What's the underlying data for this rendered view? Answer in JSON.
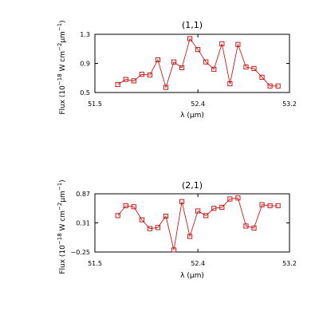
{
  "chart_data": [
    {
      "type": "line",
      "title": "(1,1)",
      "xlabel": "λ (μm)",
      "ylabel_main": "Flux (10",
      "ylabel_exp1": "−18",
      "ylabel_mid": " W cm",
      "ylabel_exp2": "−2",
      "ylabel_mid2": "μm",
      "ylabel_exp3": "−1",
      "ylabel_end": ")",
      "xlim": [
        51.5,
        53.2
      ],
      "ylim": [
        0.5,
        1.3
      ],
      "xticks": [
        "51.5",
        "52.4",
        "53.2"
      ],
      "xtick_values": [
        51.5,
        52.4,
        53.2
      ],
      "yticks": [
        "0.5",
        "0.9",
        "1.3"
      ],
      "ytick_values": [
        0.5,
        0.9,
        1.3
      ],
      "marker": "square",
      "color": "#cc0000",
      "x": [
        51.7,
        51.77,
        51.84,
        51.91,
        51.98,
        52.05,
        52.12,
        52.19,
        52.26,
        52.33,
        52.4,
        52.47,
        52.54,
        52.61,
        52.68,
        52.75,
        52.82,
        52.89,
        52.96,
        53.03,
        53.1
      ],
      "y": [
        0.61,
        0.68,
        0.66,
        0.75,
        0.74,
        0.95,
        0.57,
        0.92,
        0.84,
        1.24,
        1.09,
        0.92,
        0.82,
        1.17,
        0.62,
        1.16,
        0.85,
        0.83,
        0.71,
        0.59,
        0.59
      ]
    },
    {
      "type": "line",
      "title": "(2,1)",
      "xlabel": "λ (μm)",
      "ylabel_main": "Flux (10",
      "ylabel_exp1": "−18",
      "ylabel_mid": " W cm",
      "ylabel_exp2": "−2",
      "ylabel_mid2": "μm",
      "ylabel_exp3": "−1",
      "ylabel_end": ")",
      "xlim": [
        51.5,
        53.2
      ],
      "ylim": [
        -0.25,
        0.87
      ],
      "xticks": [
        "51.5",
        "52.4",
        "53.2"
      ],
      "xtick_values": [
        51.5,
        52.4,
        53.2
      ],
      "yticks": [
        "−0.25",
        "0.31",
        "0.87"
      ],
      "ytick_values": [
        -0.25,
        0.31,
        0.87
      ],
      "marker": "square",
      "color": "#cc0000",
      "x": [
        51.7,
        51.77,
        51.84,
        51.91,
        51.98,
        52.05,
        52.12,
        52.19,
        52.26,
        52.33,
        52.4,
        52.47,
        52.54,
        52.61,
        52.68,
        52.75,
        52.82,
        52.89,
        52.96,
        53.03,
        53.1
      ],
      "y": [
        0.45,
        0.64,
        0.62,
        0.37,
        0.2,
        0.22,
        0.44,
        -0.21,
        0.72,
        0.05,
        0.54,
        0.45,
        0.59,
        0.61,
        0.77,
        0.79,
        0.25,
        0.21,
        0.66,
        0.64,
        0.64
      ]
    }
  ]
}
